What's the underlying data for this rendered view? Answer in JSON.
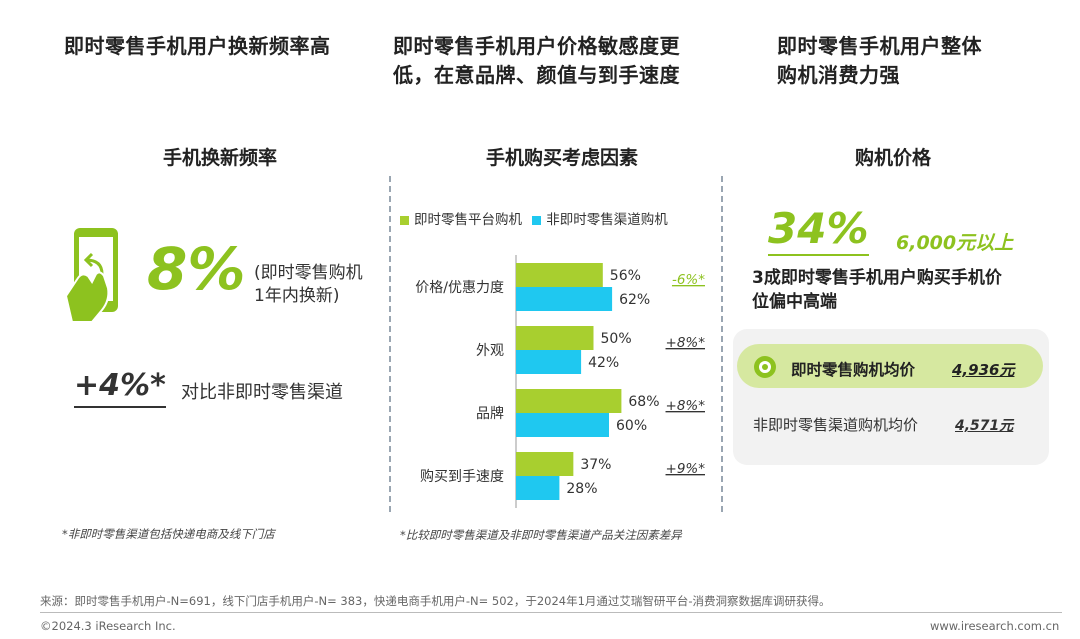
{
  "headlines": {
    "left": "即时零售手机用户换新频率高",
    "middle_line1": "即时零售手机用户价格敏感度更",
    "middle_line2": "低，在意品牌、颜值与到手速度",
    "right_line1": "即时零售手机用户整体",
    "right_line2": "购机消费力强"
  },
  "left_panel": {
    "title": "手机换新频率",
    "big_value": "8%",
    "desc_line1": "(即时零售购机",
    "desc_line2": "1年内换新)",
    "compare_value": "+4%*",
    "compare_text": "对比非即时零售渠道",
    "note": "*非即时零售渠道包括快递电商及线下门店",
    "icon": "phone-tap-icon"
  },
  "chart_data": {
    "type": "bar",
    "title": "手机购买考虑因素",
    "categories": [
      "价格/优惠力度",
      "外观",
      "品牌",
      "购买到手速度"
    ],
    "series": [
      {
        "name": "即时零售平台购机",
        "values": [
          56,
          50,
          68,
          37
        ],
        "labels": [
          "56%",
          "50%",
          "68%",
          "37%"
        ],
        "color": "#a8cf2f"
      },
      {
        "name": "非即时零售渠道购机",
        "values": [
          62,
          42,
          60,
          28
        ],
        "labels": [
          "62%",
          "42%",
          "60%",
          "28%"
        ],
        "color": "#1fc8f0"
      }
    ],
    "differences": [
      "-6%*",
      "+8%*",
      "+8%*",
      "+9%*"
    ],
    "xlim": [
      0,
      100
    ],
    "legend_position": "top",
    "grid": false,
    "note": "*比较即时零售渠道及非即时零售渠道产品关注因素差异"
  },
  "right_panel": {
    "title": "购机价格",
    "big_value": "34%",
    "price_text": "6,000元以上",
    "desc_line1": "3成即时零售手机用户购买手机价",
    "desc_line2": "位偏中高端",
    "instant_label": "即时零售购机均价",
    "instant_value": "4,936元",
    "non_instant_label": "非即时零售渠道购机均价",
    "non_instant_value": "4,571元",
    "icon": "coin-icon"
  },
  "footer": {
    "source": "来源：即时零售手机用户-N=691，线下门店手机用户-N= 383，快递电商手机用户-N= 502，于2024年1月通过艾瑞智研平台-消费洞察数据库调研获得。",
    "copyright": "©2024.3 iResearch Inc.",
    "website": "www.iresearch.com.cn"
  },
  "colors": {
    "accent_green": "#8dc21f",
    "bar_green": "#a8cf2f",
    "bar_blue": "#1fc8f0",
    "highlight_green": "#d6e8a0",
    "panel_gray": "#f2f2f2"
  }
}
